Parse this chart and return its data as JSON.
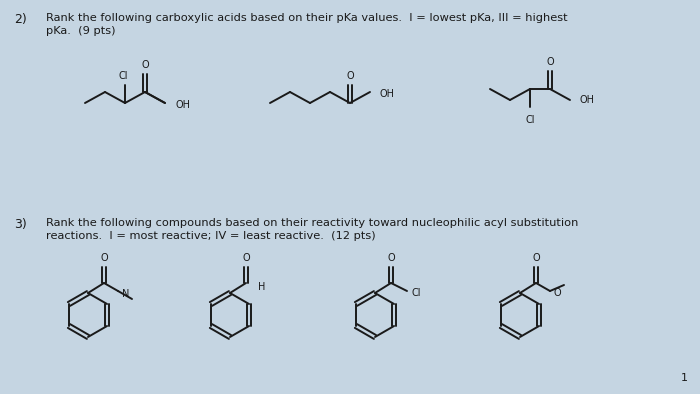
{
  "bg_color": "#c5d5e2",
  "text_color": "#1a1a1a",
  "q2_number": "2)",
  "q2_line1": "Rank the following carboxylic acids based on their pKa values.  I = lowest pKa, III = highest",
  "q2_line2": "pKa.  (9 pts)",
  "q3_number": "3)",
  "q3_line1": "Rank the following compounds based on their reactivity toward nucleophilic acyl substitution",
  "q3_line2": "reactions.  I = most reactive; IV = least reactive.  (12 pts)",
  "page_num": "1",
  "line_color": "#1a1a1a",
  "line_width": 1.4,
  "mol_step": 20,
  "mol_hstep": 11
}
